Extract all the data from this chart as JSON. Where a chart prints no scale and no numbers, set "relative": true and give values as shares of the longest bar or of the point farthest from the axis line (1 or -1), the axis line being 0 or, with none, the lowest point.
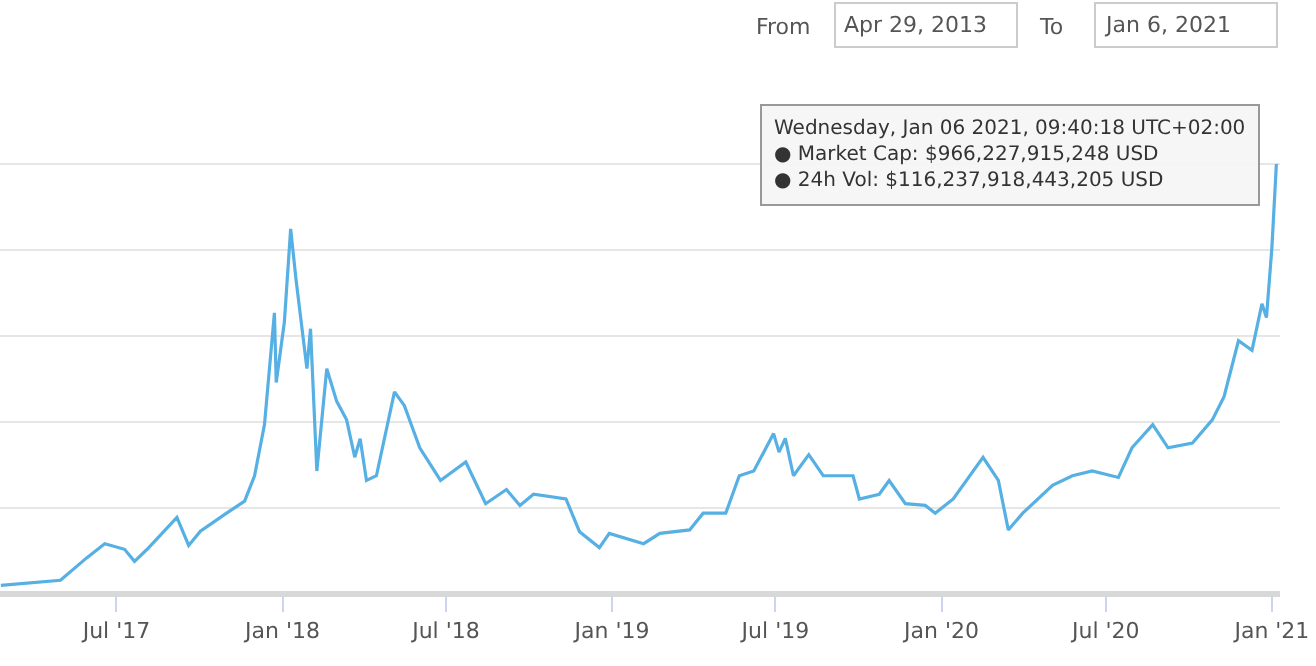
{
  "chart_data": {
    "type": "line",
    "relative": true,
    "color": "#56b0e3",
    "grid": "y",
    "marker": "none",
    "line_style": "solid",
    "annotations": [
      "From",
      "Apr 29, 2013",
      "To",
      "Jan 6, 2021",
      {
        "text": "Wednesday, Jan 06 2021, 09:40:18 UTC+02:00\n● Market Cap: $966,227,915,248 USD\n● 24h Vol: $116,237,918,443,205 USD",
        "x": "2021-01-06",
        "y": 1
      }
    ],
    "xlim": [
      "2017-02-22",
      "2021-01-10"
    ],
    "xticks": [
      {
        "value": "2017-07-01",
        "label": "Jul '17"
      },
      {
        "value": "2018-01-01",
        "label": "Jan '18"
      },
      {
        "value": "2018-07-01",
        "label": "Jul '18"
      },
      {
        "value": "2019-01-01",
        "label": "Jan '19"
      },
      {
        "value": "2019-07-01",
        "label": "Jul '19"
      },
      {
        "value": "2020-01-01",
        "label": "Jan '20"
      },
      {
        "value": "2020-07-01",
        "label": "Jul '20"
      },
      {
        "value": "2021-01-01",
        "label": "Jan '21"
      }
    ],
    "x": [
      "2017-02-23",
      "2017-04-30",
      "2017-05-29",
      "2017-06-18",
      "2017-07-10",
      "2017-07-21",
      "2017-08-04",
      "2017-09-06",
      "2017-09-19",
      "2017-10-02",
      "2017-10-31",
      "2017-11-20",
      "2017-12-01",
      "2017-12-12",
      "2017-12-23",
      "2017-12-25",
      "2018-01-03",
      "2018-01-10",
      "2018-01-16",
      "2018-01-28",
      "2018-02-01",
      "2018-02-08",
      "2018-02-19",
      "2018-03-02",
      "2018-03-13",
      "2018-03-22",
      "2018-03-28",
      "2018-04-04",
      "2018-04-15",
      "2018-05-05",
      "2018-05-16",
      "2018-06-02",
      "2018-06-25",
      "2018-07-23",
      "2018-08-14",
      "2018-09-06",
      "2018-09-21",
      "2018-10-06",
      "2018-11-11",
      "2018-11-26",
      "2018-12-18",
      "2018-12-29",
      "2019-02-05",
      "2019-02-23",
      "2019-03-28",
      "2019-04-12",
      "2019-05-07",
      "2019-05-22",
      "2019-06-07",
      "2019-06-29",
      "2019-07-05",
      "2019-07-12",
      "2019-07-21",
      "2019-08-07",
      "2019-08-23",
      "2019-09-25",
      "2019-10-02",
      "2019-10-24",
      "2019-11-04",
      "2019-11-22",
      "2019-12-14",
      "2019-12-25",
      "2020-01-14",
      "2020-02-16",
      "2020-03-04",
      "2020-03-15",
      "2020-03-31",
      "2020-05-03",
      "2020-05-25",
      "2020-06-16",
      "2020-07-15",
      "2020-07-30",
      "2020-08-22",
      "2020-09-08",
      "2020-10-05",
      "2020-10-27",
      "2020-11-09",
      "2020-11-25",
      "2020-12-10",
      "2020-12-21",
      "2020-12-26",
      "2021-01-01",
      "2021-01-06"
    ],
    "values": [
      0.02,
      0.032,
      0.084,
      0.117,
      0.104,
      0.076,
      0.104,
      0.178,
      0.113,
      0.146,
      0.188,
      0.216,
      0.275,
      0.394,
      0.654,
      0.492,
      0.632,
      0.849,
      0.73,
      0.524,
      0.617,
      0.286,
      0.524,
      0.448,
      0.405,
      0.318,
      0.361,
      0.264,
      0.275,
      0.47,
      0.438,
      0.34,
      0.264,
      0.307,
      0.21,
      0.243,
      0.206,
      0.232,
      0.221,
      0.145,
      0.108,
      0.141,
      0.117,
      0.141,
      0.149,
      0.188,
      0.188,
      0.275,
      0.286,
      0.373,
      0.33,
      0.362,
      0.275,
      0.324,
      0.275,
      0.275,
      0.221,
      0.232,
      0.264,
      0.21,
      0.206,
      0.188,
      0.221,
      0.318,
      0.264,
      0.149,
      0.188,
      0.253,
      0.275,
      0.286,
      0.271,
      0.34,
      0.394,
      0.34,
      0.351,
      0.405,
      0.459,
      0.589,
      0.567,
      0.675,
      0.643,
      0.805,
      1.0
    ]
  }
}
